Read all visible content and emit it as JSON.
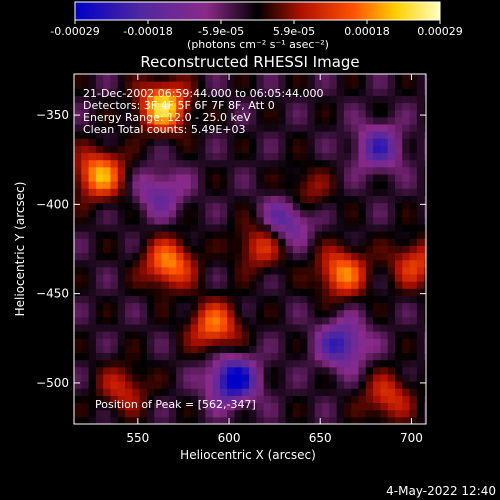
{
  "chart_data": {
    "type": "heatmap",
    "title": "Reconstructed RHESSI Image",
    "xlabel": "Heliocentric X (arcsec)",
    "ylabel": "Heliocentric Y (arcsec)",
    "xlim": [
      515,
      708
    ],
    "ylim": [
      -523,
      -327
    ],
    "x_ticks": [
      550,
      600,
      650,
      700
    ],
    "y_ticks": [
      -350,
      -400,
      -450,
      -500
    ],
    "colorbar": {
      "range": [
        -0.00029,
        0.00029
      ],
      "tick_labels": [
        "-0.00029",
        "-0.00018",
        "-5.9e-05",
        "5.9e-05",
        "0.00018",
        "0.00029"
      ],
      "units_label": "(photons cm⁻² s⁻¹ asec⁻²)",
      "colors": [
        "#0000c8",
        "#5028a0",
        "#8a2a8a",
        "#000000",
        "#b01000",
        "#ff5000",
        "#ffd000",
        "#ffffc0"
      ]
    },
    "sources": [
      {
        "x": 562,
        "y": -347,
        "value": 0.00029
      },
      {
        "x": 527,
        "y": -385,
        "value": 0.00024
      },
      {
        "x": 565,
        "y": -435,
        "value": 0.00022
      },
      {
        "x": 590,
        "y": -470,
        "value": 0.0002
      },
      {
        "x": 660,
        "y": -440,
        "value": 0.00021
      },
      {
        "x": 615,
        "y": -425,
        "value": 0.00014
      },
      {
        "x": 685,
        "y": -510,
        "value": 0.00014
      },
      {
        "x": 700,
        "y": -435,
        "value": 0.00015
      },
      {
        "x": 640,
        "y": -395,
        "value": 0.0001
      },
      {
        "x": 540,
        "y": -505,
        "value": 0.00012
      },
      {
        "x": 600,
        "y": -500,
        "value": -0.00024
      },
      {
        "x": 630,
        "y": -410,
        "value": -0.00016
      },
      {
        "x": 680,
        "y": -370,
        "value": -0.00015
      },
      {
        "x": 660,
        "y": -480,
        "value": -0.00018
      },
      {
        "x": 560,
        "y": -395,
        "value": -0.00012
      }
    ],
    "annotations": {
      "line1": "21-Dec-2002 06:59:44.000 to 06:05:44.000",
      "line2": "Detectors: 3F 4F 5F 6F 7F 8F, Att 0",
      "line3": "Energy Range: 12.0 - 25.0 keV",
      "line4": "Clean    Total counts: 5.49E+03",
      "peak": "Position of Peak = [562,-347]"
    },
    "footer": "4-May-2022 12:40"
  }
}
